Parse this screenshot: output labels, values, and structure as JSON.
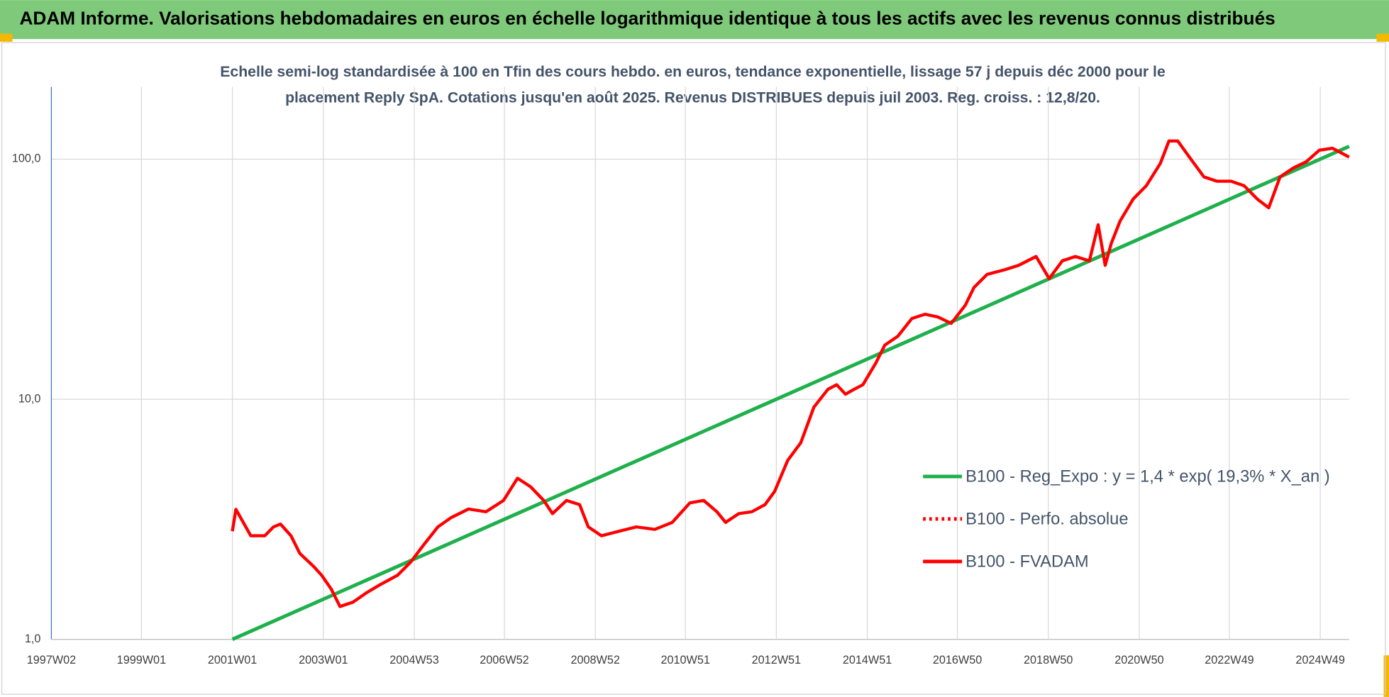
{
  "chart_data": {
    "type": "line",
    "title": "ADAM Informe. Valorisations hebdomadaires en euros en échelle logarithmique identique à tous les actifs avec les revenus connus distribués",
    "subtitle": [
      "Echelle semi-log standardisée à 100 en Tfin des cours hebdo. en euros, tendance exponentielle, lissage 57 j depuis déc 2000 pour le",
      "placement Reply SpA. Cotations jusqu'en août 2025. Revenus DISTRIBUES depuis juil 2003. Reg. croiss. : 12,8/20."
    ],
    "log_scale": true,
    "grid": true,
    "legend": "right",
    "xlim": [
      "1997W02",
      "2025W30"
    ],
    "xticks": [
      "1997W02",
      "1999W01",
      "2001W01",
      "2003W01",
      "2004W53",
      "2006W52",
      "2008W52",
      "2010W51",
      "2012W51",
      "2014W51",
      "2016W50",
      "2018W50",
      "2020W50",
      "2022W49",
      "2024W49"
    ],
    "ylim": [
      1,
      200
    ],
    "yticks": [
      {
        "value": 1,
        "label": "1,0"
      },
      {
        "value": 10,
        "label": "10,0"
      },
      {
        "value": 100,
        "label": "100,0"
      }
    ],
    "series": [
      {
        "name": "B100 - Reg_Expo : y = 1,4 * exp( 19,3% *  X_an )",
        "color": "#1fb04c",
        "dash": "solid",
        "x": [
          "2001W01",
          "2025W30"
        ],
        "values": [
          1.0,
          113
        ]
      },
      {
        "name": "B100 - Perfo. absolue",
        "color": "#ff0000",
        "dash": "dotted",
        "x": [],
        "values": []
      },
      {
        "name": "B100 - FVADAM",
        "color": "#ff0000",
        "dash": "solid",
        "x": [
          "2001W01",
          "2001W05",
          "2001W22",
          "2001W38",
          "2001W48",
          "2002W04",
          "2002W16",
          "2002W26",
          "2002W42",
          "2002W51",
          "2003W10",
          "2003W20",
          "2003W35",
          "2003W50",
          "2004W14",
          "2004W34",
          "2004W49",
          "2005W12",
          "2005W28",
          "2005W43",
          "2006W11",
          "2006W31",
          "2006W51",
          "2007W15",
          "2007W30",
          "2007W45",
          "2008W03",
          "2008W19",
          "2008W34",
          "2008W44",
          "2009W07",
          "2009W27",
          "2009W47",
          "2010W16",
          "2010W36",
          "2011W04",
          "2011W20",
          "2011W35",
          "2011W45",
          "2012W08",
          "2012W23",
          "2012W38",
          "2012W49",
          "2013W12",
          "2013W27",
          "2013W42",
          "2014W06",
          "2014W16",
          "2014W26",
          "2014W36",
          "2014W46",
          "2015W09",
          "2015W19",
          "2015W34",
          "2015W50",
          "2016W13",
          "2016W28",
          "2016W43",
          "2017W07",
          "2017W17",
          "2017W32",
          "2017W52",
          "2018W16",
          "2018W36",
          "2018W51",
          "2019W14",
          "2019W29",
          "2019W45",
          "2020W03",
          "2020W11",
          "2020W18",
          "2020W28",
          "2020W43",
          "2021W06",
          "2021W22",
          "2021W32",
          "2021W42",
          "2022W05",
          "2022W20",
          "2022W35",
          "2022W51",
          "2023W14",
          "2023W29",
          "2023W42",
          "2024W03",
          "2024W18",
          "2024W33",
          "2024W48",
          "2025W11",
          "2025W30"
        ],
        "values": [
          2.82,
          3.48,
          2.7,
          2.7,
          2.94,
          3.02,
          2.7,
          2.28,
          2.01,
          1.85,
          1.62,
          1.37,
          1.43,
          1.56,
          1.69,
          1.85,
          2.1,
          2.48,
          2.94,
          3.21,
          3.49,
          3.4,
          3.79,
          4.69,
          4.32,
          3.79,
          3.34,
          3.79,
          3.64,
          2.94,
          2.7,
          2.82,
          2.94,
          2.87,
          3.07,
          3.7,
          3.79,
          3.4,
          3.07,
          3.34,
          3.4,
          3.64,
          4.13,
          5.56,
          6.59,
          9.27,
          11.0,
          11.5,
          10.5,
          11.0,
          11.5,
          14.2,
          16.8,
          18.3,
          21.7,
          22.6,
          22.0,
          20.7,
          24.6,
          29.2,
          33.1,
          34.6,
          36.1,
          39.3,
          31.8,
          37.7,
          39.3,
          37.7,
          53.3,
          36.1,
          44.6,
          55.2,
          68.2,
          77.5,
          95.9,
          119,
          119,
          100,
          84.3,
          80.9,
          80.9,
          77.5,
          68.2,
          62.7,
          84.3,
          91.8,
          97.5,
          109,
          111,
          102
        ]
      }
    ]
  }
}
